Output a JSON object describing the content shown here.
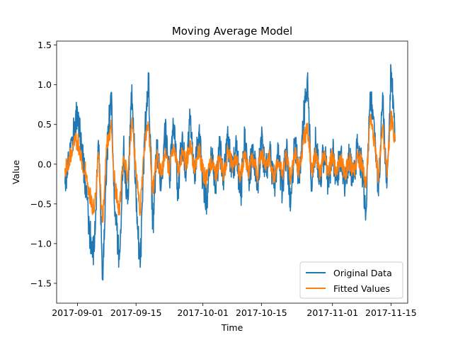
{
  "chart_data": {
    "type": "line",
    "title": "Moving Average Model",
    "xlabel": "Time",
    "ylabel": "Value",
    "x_range": [
      "2017-08-27",
      "2017-11-19"
    ],
    "ylim": [
      -1.75,
      1.55
    ],
    "y_ticks": [
      -1.5,
      -1.0,
      -0.5,
      0.0,
      0.5,
      1.0,
      1.5
    ],
    "y_tick_labels": [
      "−1.5",
      "−1.0",
      "−0.5",
      "0.0",
      "0.5",
      "1.0",
      "1.5"
    ],
    "x_ticks": [
      "2017-09-01",
      "2017-09-15",
      "2017-10-01",
      "2017-10-15",
      "2017-11-01",
      "2017-11-15"
    ],
    "x_tick_labels": [
      "2017-09-01",
      "2017-09-15",
      "2017-10-01",
      "2017-10-15",
      "2017-11-01",
      "2017-11-15"
    ],
    "grid": false,
    "legend_position": "lower-right",
    "series": [
      {
        "name": "Original Data",
        "color": "#1f77b4",
        "points": [
          [
            "2017-08-29",
            -0.25
          ],
          [
            "2017-08-30",
            0.1
          ],
          [
            "2017-08-31",
            0.4
          ],
          [
            "2017-09-01",
            0.65
          ],
          [
            "2017-09-02",
            0.2
          ],
          [
            "2017-09-03",
            -0.3
          ],
          [
            "2017-09-04",
            -0.9
          ],
          [
            "2017-09-05",
            -1.1
          ],
          [
            "2017-09-06",
            0.3
          ],
          [
            "2017-09-07",
            -1.4
          ],
          [
            "2017-09-08",
            0.1
          ],
          [
            "2017-09-09",
            0.9
          ],
          [
            "2017-09-10",
            -0.6
          ],
          [
            "2017-09-11",
            -1.2
          ],
          [
            "2017-09-12",
            0.2
          ],
          [
            "2017-09-13",
            -0.5
          ],
          [
            "2017-09-14",
            1.0
          ],
          [
            "2017-09-15",
            -0.4
          ],
          [
            "2017-09-16",
            -1.3
          ],
          [
            "2017-09-17",
            0.3
          ],
          [
            "2017-09-18",
            1.1
          ],
          [
            "2017-09-19",
            -0.8
          ],
          [
            "2017-09-20",
            0.2
          ],
          [
            "2017-09-21",
            -0.3
          ],
          [
            "2017-09-22",
            0.4
          ],
          [
            "2017-09-23",
            -0.2
          ],
          [
            "2017-09-24",
            0.5
          ],
          [
            "2017-09-25",
            -0.3
          ],
          [
            "2017-09-26",
            0.3
          ],
          [
            "2017-09-27",
            -0.1
          ],
          [
            "2017-09-28",
            0.6
          ],
          [
            "2017-09-29",
            -0.2
          ],
          [
            "2017-09-30",
            0.4
          ],
          [
            "2017-10-01",
            -0.2
          ],
          [
            "2017-10-02",
            -0.5
          ],
          [
            "2017-10-03",
            0.1
          ],
          [
            "2017-10-04",
            -0.3
          ],
          [
            "2017-10-05",
            0.2
          ],
          [
            "2017-10-06",
            -0.2
          ],
          [
            "2017-10-07",
            0.3
          ],
          [
            "2017-10-08",
            -0.1
          ],
          [
            "2017-10-09",
            0.2
          ],
          [
            "2017-10-10",
            -0.4
          ],
          [
            "2017-10-11",
            0.3
          ],
          [
            "2017-10-12",
            -0.2
          ],
          [
            "2017-10-13",
            0.25
          ],
          [
            "2017-10-14",
            -0.3
          ],
          [
            "2017-10-15",
            0.3
          ],
          [
            "2017-10-16",
            -0.1
          ],
          [
            "2017-10-17",
            0.2
          ],
          [
            "2017-10-18",
            -0.3
          ],
          [
            "2017-10-19",
            0.1
          ],
          [
            "2017-10-20",
            -0.35
          ],
          [
            "2017-10-21",
            0.2
          ],
          [
            "2017-10-22",
            -0.5
          ],
          [
            "2017-10-23",
            0.3
          ],
          [
            "2017-10-24",
            -0.2
          ],
          [
            "2017-10-25",
            0.5
          ],
          [
            "2017-10-26",
            1.1
          ],
          [
            "2017-10-27",
            -0.3
          ],
          [
            "2017-10-28",
            0.3
          ],
          [
            "2017-10-29",
            -0.2
          ],
          [
            "2017-10-30",
            0.15
          ],
          [
            "2017-10-31",
            -0.25
          ],
          [
            "2017-11-01",
            0.2
          ],
          [
            "2017-11-02",
            -0.2
          ],
          [
            "2017-11-03",
            0.15
          ],
          [
            "2017-11-04",
            -0.3
          ],
          [
            "2017-11-05",
            0.1
          ],
          [
            "2017-11-06",
            -0.2
          ],
          [
            "2017-11-07",
            0.2
          ],
          [
            "2017-11-08",
            0.0
          ],
          [
            "2017-11-09",
            -0.6
          ],
          [
            "2017-11-10",
            0.9
          ],
          [
            "2017-11-11",
            0.5
          ],
          [
            "2017-11-12",
            -0.4
          ],
          [
            "2017-11-13",
            0.9
          ],
          [
            "2017-11-14",
            -0.3
          ],
          [
            "2017-11-15",
            1.2
          ],
          [
            "2017-11-16",
            0.3
          ]
        ]
      },
      {
        "name": "Fitted Values",
        "color": "#ff7f0e",
        "points": [
          [
            "2017-08-29",
            -0.05
          ],
          [
            "2017-08-30",
            0.05
          ],
          [
            "2017-08-31",
            0.25
          ],
          [
            "2017-09-01",
            0.3
          ],
          [
            "2017-09-02",
            0.05
          ],
          [
            "2017-09-03",
            -0.1
          ],
          [
            "2017-09-04",
            -0.4
          ],
          [
            "2017-09-05",
            -0.6
          ],
          [
            "2017-09-06",
            0.1
          ],
          [
            "2017-09-07",
            -0.7
          ],
          [
            "2017-09-08",
            0.2
          ],
          [
            "2017-09-09",
            0.5
          ],
          [
            "2017-09-10",
            -0.3
          ],
          [
            "2017-09-11",
            -0.6
          ],
          [
            "2017-09-12",
            0.1
          ],
          [
            "2017-09-13",
            -0.2
          ],
          [
            "2017-09-14",
            0.55
          ],
          [
            "2017-09-15",
            -0.1
          ],
          [
            "2017-09-16",
            -0.6
          ],
          [
            "2017-09-17",
            0.2
          ],
          [
            "2017-09-18",
            0.5
          ],
          [
            "2017-09-19",
            -0.35
          ],
          [
            "2017-09-20",
            0.1
          ],
          [
            "2017-09-21",
            -0.15
          ],
          [
            "2017-09-22",
            0.2
          ],
          [
            "2017-09-23",
            -0.1
          ],
          [
            "2017-09-24",
            0.25
          ],
          [
            "2017-09-25",
            -0.1
          ],
          [
            "2017-09-26",
            0.15
          ],
          [
            "2017-09-27",
            0.0
          ],
          [
            "2017-09-28",
            0.3
          ],
          [
            "2017-09-29",
            -0.1
          ],
          [
            "2017-09-30",
            0.2
          ],
          [
            "2017-10-01",
            -0.1
          ],
          [
            "2017-10-02",
            -0.2
          ],
          [
            "2017-10-03",
            0.05
          ],
          [
            "2017-10-04",
            -0.15
          ],
          [
            "2017-10-05",
            0.1
          ],
          [
            "2017-10-06",
            -0.1
          ],
          [
            "2017-10-07",
            0.15
          ],
          [
            "2017-10-08",
            0.0
          ],
          [
            "2017-10-09",
            0.1
          ],
          [
            "2017-10-10",
            -0.2
          ],
          [
            "2017-10-11",
            0.15
          ],
          [
            "2017-10-12",
            -0.1
          ],
          [
            "2017-10-13",
            0.1
          ],
          [
            "2017-10-14",
            -0.15
          ],
          [
            "2017-10-15",
            0.15
          ],
          [
            "2017-10-16",
            0.0
          ],
          [
            "2017-10-17",
            0.1
          ],
          [
            "2017-10-18",
            -0.15
          ],
          [
            "2017-10-19",
            0.05
          ],
          [
            "2017-10-20",
            -0.15
          ],
          [
            "2017-10-21",
            0.1
          ],
          [
            "2017-10-22",
            -0.2
          ],
          [
            "2017-10-23",
            0.15
          ],
          [
            "2017-10-24",
            -0.1
          ],
          [
            "2017-10-25",
            0.25
          ],
          [
            "2017-10-26",
            0.5
          ],
          [
            "2017-10-27",
            -0.1
          ],
          [
            "2017-10-28",
            0.15
          ],
          [
            "2017-10-29",
            -0.1
          ],
          [
            "2017-10-30",
            0.1
          ],
          [
            "2017-10-31",
            -0.1
          ],
          [
            "2017-11-01",
            0.1
          ],
          [
            "2017-11-02",
            -0.1
          ],
          [
            "2017-11-03",
            0.1
          ],
          [
            "2017-11-04",
            -0.15
          ],
          [
            "2017-11-05",
            0.05
          ],
          [
            "2017-11-06",
            -0.1
          ],
          [
            "2017-11-07",
            0.1
          ],
          [
            "2017-11-08",
            0.0
          ],
          [
            "2017-11-09",
            -0.3
          ],
          [
            "2017-11-10",
            0.55
          ],
          [
            "2017-11-11",
            0.3
          ],
          [
            "2017-11-12",
            -0.2
          ],
          [
            "2017-11-13",
            0.45
          ],
          [
            "2017-11-14",
            -0.1
          ],
          [
            "2017-11-15",
            0.6
          ],
          [
            "2017-11-16",
            0.3
          ]
        ]
      }
    ]
  }
}
